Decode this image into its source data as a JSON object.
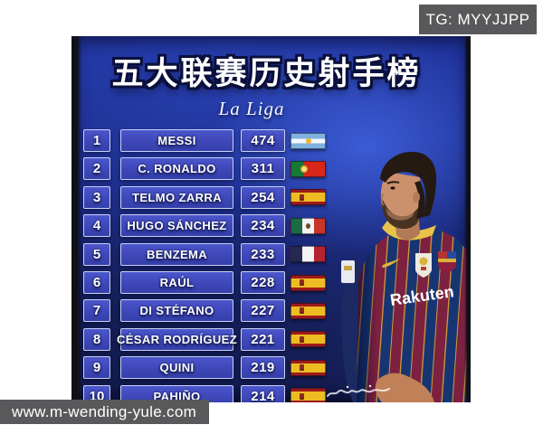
{
  "watermarks": {
    "telegram_badge": "TG: MYYJJPP",
    "website_badge": "www.m-wending-yule.com"
  },
  "poster": {
    "title": "五大联赛历史射手榜",
    "subtitle": "La Liga",
    "jersey_sponsor": "Rakuten",
    "colors": {
      "poster_blue": "#1c2c88",
      "cell_fill": "#3e49bb",
      "cell_border": "#c9d2f4",
      "badge_gray": "#59595b",
      "barca_garnet": "#7c2140",
      "barca_blue": "#173572",
      "collar_gold": "#e8c24a"
    },
    "table": {
      "rows": [
        {
          "rank": "1",
          "player": "MESSI",
          "goals": "474",
          "flag": "argentina"
        },
        {
          "rank": "2",
          "player": "C. RONALDO",
          "goals": "311",
          "flag": "portugal"
        },
        {
          "rank": "3",
          "player": "TELMO ZARRA",
          "goals": "254",
          "flag": "spain"
        },
        {
          "rank": "4",
          "player": "HUGO SÁNCHEZ",
          "goals": "234",
          "flag": "mexico"
        },
        {
          "rank": "5",
          "player": "BENZEMA",
          "goals": "233",
          "flag": "france"
        },
        {
          "rank": "6",
          "player": "RAÚL",
          "goals": "228",
          "flag": "spain"
        },
        {
          "rank": "7",
          "player": "DI STÉFANO",
          "goals": "227",
          "flag": "spain"
        },
        {
          "rank": "8",
          "player": "CÉSAR RODRÍGUEZ",
          "goals": "221",
          "flag": "spain"
        },
        {
          "rank": "9",
          "player": "QUINI",
          "goals": "219",
          "flag": "spain"
        },
        {
          "rank": "10",
          "player": "PAHIÑO",
          "goals": "214",
          "flag": "spain"
        }
      ]
    }
  },
  "chart_data": {
    "type": "table",
    "title": "五大联赛历史射手榜",
    "subtitle": "La Liga",
    "columns": [
      "rank",
      "player",
      "goals",
      "country"
    ],
    "rows": [
      [
        1,
        "MESSI",
        474,
        "Argentina"
      ],
      [
        2,
        "C. RONALDO",
        311,
        "Portugal"
      ],
      [
        3,
        "TELMO ZARRA",
        254,
        "Spain"
      ],
      [
        4,
        "HUGO SÁNCHEZ",
        234,
        "Mexico"
      ],
      [
        5,
        "BENZEMA",
        233,
        "France"
      ],
      [
        6,
        "RAÚL",
        228,
        "Spain"
      ],
      [
        7,
        "DI STÉFANO",
        227,
        "Spain"
      ],
      [
        8,
        "CÉSAR RODRÍGUEZ",
        221,
        "Spain"
      ],
      [
        9,
        "QUINI",
        219,
        "Spain"
      ],
      [
        10,
        "PAHIÑO",
        214,
        "Spain"
      ]
    ]
  }
}
